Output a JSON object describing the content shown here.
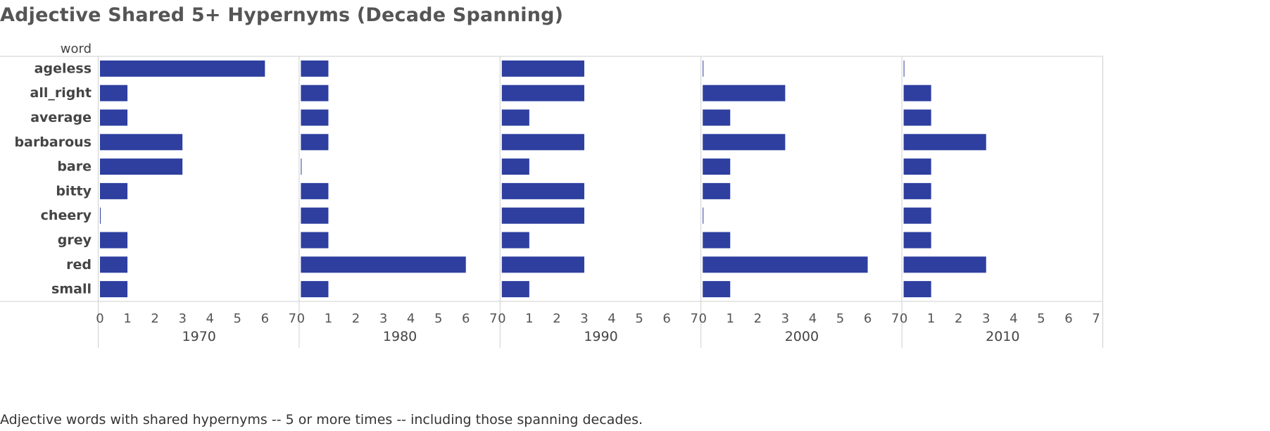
{
  "title": "Adjective Shared 5+ Hypernyms (Decade Spanning)",
  "caption": "Adjective words with shared hypernyms -- 5 or more times --  including those spanning decades.",
  "colors": {
    "bar": "#2e3fa0",
    "axis": "#cfcfcf",
    "text": "#444444"
  },
  "chart_data": {
    "type": "bar",
    "orientation": "horizontal",
    "row_header": "word",
    "categories": [
      "ageless",
      "all_right",
      "average",
      "barbarous",
      "bare",
      "bitty",
      "cheery",
      "grey",
      "red",
      "small"
    ],
    "xlim": [
      0,
      7
    ],
    "xticks": [
      "0",
      "1",
      "2",
      "3",
      "4",
      "5",
      "6",
      "7"
    ],
    "series": [
      {
        "name": "1970",
        "values": [
          6,
          1,
          1,
          3,
          3,
          1,
          0.02,
          1,
          1,
          1
        ]
      },
      {
        "name": "1980",
        "values": [
          1,
          1,
          1,
          1,
          0.02,
          1,
          1,
          1,
          6,
          1
        ]
      },
      {
        "name": "1990",
        "values": [
          3,
          3,
          1,
          3,
          1,
          3,
          3,
          1,
          3,
          1
        ]
      },
      {
        "name": "2000",
        "values": [
          0.02,
          3,
          1,
          3,
          1,
          1,
          0.02,
          1,
          6,
          1
        ]
      },
      {
        "name": "2010",
        "values": [
          0.02,
          1,
          1,
          3,
          1,
          1,
          1,
          1,
          3,
          1
        ]
      }
    ]
  }
}
